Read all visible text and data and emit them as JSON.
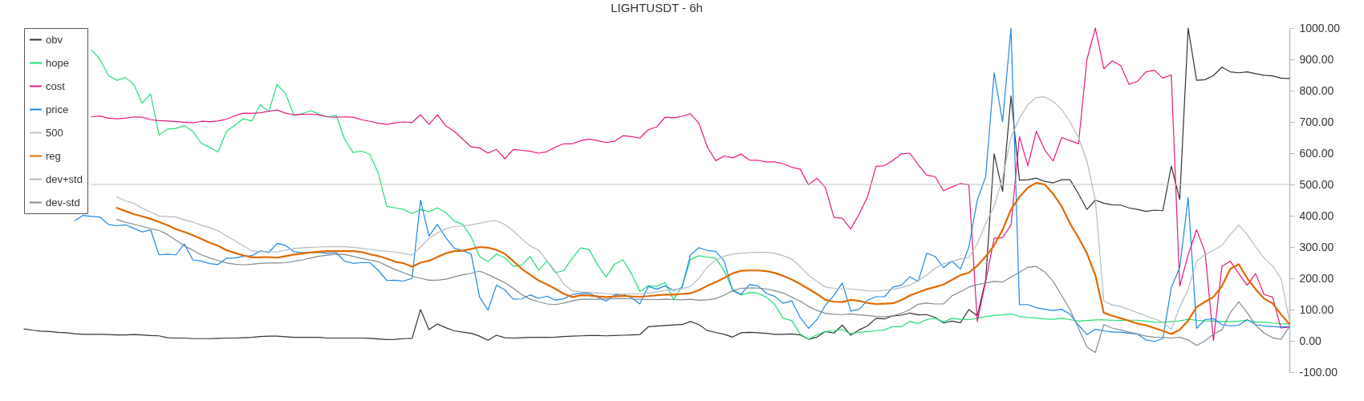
{
  "chart_data": {
    "type": "line",
    "title": "LIGHTUSDT - 6h",
    "categories": [
      null,
      null,
      null,
      null,
      null,
      null,
      null,
      null,
      null,
      null,
      null,
      null,
      null,
      null,
      null,
      null,
      null,
      null,
      null,
      null,
      null,
      null,
      null,
      null,
      null,
      null,
      null,
      null,
      null,
      null,
      null,
      null,
      null,
      null,
      null,
      null,
      null,
      null,
      null,
      null,
      null,
      null,
      null,
      null,
      null,
      null,
      null,
      null,
      null,
      null,
      null,
      null,
      null,
      null,
      null,
      null,
      null,
      null,
      null,
      null,
      null,
      null,
      null,
      null,
      null,
      null,
      null,
      null,
      null,
      null,
      null,
      null,
      null,
      null,
      null,
      null,
      null,
      null,
      null,
      null,
      null,
      null,
      null,
      null,
      null,
      null,
      null,
      null,
      null,
      null,
      null,
      null,
      null,
      null,
      null,
      null,
      null,
      null,
      null,
      null,
      null,
      null,
      null,
      null,
      null,
      null,
      null,
      null,
      null,
      null,
      null,
      null,
      null,
      null,
      null,
      null,
      null,
      null,
      null,
      null,
      null,
      null,
      null,
      null,
      null,
      null,
      null,
      null,
      null,
      null,
      null,
      null,
      null,
      null,
      null,
      null,
      null,
      null,
      null,
      null,
      null,
      null,
      null,
      null,
      null,
      null,
      null,
      null,
      null,
      null,
      null
    ],
    "series": [
      {
        "name": "obv",
        "color": "#333333",
        "values": [
          38,
          34,
          31,
          30,
          27,
          26,
          23,
          21,
          21,
          21,
          20,
          19,
          19,
          20,
          19,
          17,
          16,
          10,
          9,
          9,
          7,
          7,
          7,
          8,
          9,
          9,
          10,
          11,
          14,
          15,
          15,
          13,
          11,
          11,
          11,
          11,
          9,
          9,
          9,
          9,
          9,
          8,
          6,
          4,
          5,
          7,
          8,
          100,
          36,
          54,
          42,
          32,
          28,
          24,
          15,
          2,
          18,
          10,
          9,
          10,
          11,
          11,
          11,
          12,
          14,
          15,
          16,
          17,
          17,
          16,
          17,
          18,
          19,
          20,
          45,
          47,
          49,
          51,
          52,
          62,
          52,
          33,
          27,
          21,
          12,
          26,
          27,
          26,
          24,
          21,
          21,
          22,
          19,
          5,
          12,
          30,
          25,
          50,
          18,
          35,
          48,
          72,
          70,
          80,
          82,
          89,
          83,
          84,
          75,
          57,
          63,
          58,
          100,
          80,
          195,
          598,
          478,
          783,
          514,
          515,
          520,
          510,
          505,
          515,
          515,
          470,
          420,
          450,
          440,
          435,
          434,
          425,
          420,
          414,
          418,
          416,
          559,
          452,
          1000,
          833,
          835,
          848,
          875,
          860,
          857,
          860,
          854,
          849,
          847,
          840,
          839
        ]
      },
      {
        "name": "hope",
        "color": "#22dd77",
        "values": [
          null,
          null,
          null,
          null,
          null,
          null,
          null,
          null,
          930,
          900,
          848,
          833,
          842,
          820,
          760,
          790,
          658,
          677,
          679,
          688,
          670,
          632,
          619,
          604,
          670,
          690,
          710,
          703,
          755,
          733,
          820,
          790,
          720,
          727,
          736,
          724,
          716,
          721,
          645,
          602,
          607,
          596,
          535,
          430,
          425,
          420,
          407,
          420,
          413,
          425,
          410,
          383,
          372,
          332,
          270,
          253,
          277,
          266,
          238,
          242,
          270,
          226,
          255,
          218,
          225,
          265,
          297,
          292,
          242,
          204,
          245,
          259,
          215,
          158,
          176,
          174,
          187,
          131,
          175,
          260,
          272,
          268,
          264,
          224,
          165,
          147,
          155,
          152,
          140,
          115,
          72,
          65,
          22,
          5,
          20,
          30,
          32,
          36,
          23,
          27,
          30,
          32,
          35,
          46,
          45,
          62,
          55,
          68,
          72,
          60,
          72,
          69,
          68,
          72,
          78,
          81,
          83,
          86,
          78,
          75,
          73,
          70,
          69,
          72,
          68,
          63,
          65,
          67,
          67,
          66,
          65,
          66,
          66,
          63,
          60,
          59,
          62,
          64,
          69,
          66,
          64,
          63,
          62,
          62,
          63,
          66,
          60,
          60,
          57,
          55,
          54
        ]
      },
      {
        "name": "cost",
        "color": "#e6197f",
        "values": [
          null,
          null,
          null,
          null,
          null,
          null,
          null,
          null,
          716,
          719,
          712,
          710,
          712,
          716,
          715,
          707,
          704,
          703,
          701,
          699,
          697,
          702,
          701,
          703,
          709,
          720,
          728,
          727,
          729,
          734,
          738,
          728,
          723,
          724,
          725,
          722,
          716,
          715,
          716,
          715,
          707,
          702,
          696,
          692,
          697,
          700,
          698,
          723,
          692,
          723,
          687,
          670,
          645,
          620,
          617,
          600,
          612,
          582,
          612,
          609,
          606,
          600,
          605,
          620,
          630,
          630,
          640,
          645,
          640,
          634,
          638,
          656,
          653,
          648,
          675,
          684,
          715,
          713,
          718,
          726,
          696,
          620,
          576,
          591,
          585,
          597,
          578,
          577,
          572,
          572,
          566,
          555,
          549,
          499,
          520,
          490,
          395,
          392,
          358,
          405,
          461,
          558,
          560,
          577,
          598,
          600,
          563,
          530,
          525,
          480,
          492,
          503,
          499,
          62,
          190,
          328,
          330,
          370,
          653,
          560,
          670,
          610,
          575,
          650,
          640,
          630,
          900,
          1000,
          870,
          895,
          880,
          820,
          830,
          860,
          865,
          840,
          850,
          175,
          275,
          355,
          285,
          1,
          238,
          255,
          215,
          178,
          215,
          148,
          140,
          41,
          44
        ]
      },
      {
        "name": "price",
        "color": "#1e88e5",
        "values": [
          null,
          null,
          null,
          null,
          null,
          null,
          384,
          401,
          398,
          396,
          372,
          368,
          371,
          360,
          348,
          355,
          275,
          277,
          275,
          310,
          259,
          255,
          247,
          244,
          264,
          265,
          270,
          272,
          288,
          282,
          312,
          305,
          285,
          282,
          283,
          282,
          280,
          282,
          255,
          248,
          250,
          250,
          225,
          193,
          194,
          191,
          200,
          450,
          335,
          372,
          330,
          296,
          288,
          278,
          140,
          98,
          178,
          163,
          133,
          134,
          147,
          136,
          143,
          130,
          135,
          148,
          153,
          152,
          140,
          127,
          147,
          150,
          138,
          118,
          174,
          165,
          176,
          161,
          170,
          275,
          298,
          289,
          286,
          255,
          160,
          149,
          180,
          176,
          152,
          142,
          120,
          128,
          75,
          40,
          68,
          114,
          145,
          185,
          95,
          101,
          130,
          141,
          141,
          172,
          178,
          205,
          190,
          280,
          270,
          234,
          255,
          229,
          300,
          450,
          525,
          857,
          700,
          1000,
          116,
          116,
          106,
          101,
          97,
          101,
          85,
          50,
          20,
          37,
          32,
          28,
          28,
          24,
          22,
          3,
          -2,
          7,
          170,
          234,
          458,
          40,
          68,
          71,
          52,
          48,
          50,
          68,
          52,
          48,
          46,
          44,
          46
        ]
      },
      {
        "name": "500",
        "color": "#c4c4c4",
        "values": [
          null,
          null,
          null,
          null,
          null,
          null,
          null,
          null,
          500,
          500,
          500,
          500,
          500,
          500,
          500,
          500,
          500,
          500,
          500,
          500,
          500,
          500,
          500,
          500,
          500,
          500,
          500,
          500,
          500,
          500,
          500,
          500,
          500,
          500,
          500,
          500,
          500,
          500,
          500,
          500,
          500,
          500,
          500,
          500,
          500,
          500,
          500,
          500,
          500,
          500,
          500,
          500,
          500,
          500,
          500,
          500,
          500,
          500,
          500,
          500,
          500,
          500,
          500,
          500,
          500,
          500,
          500,
          500,
          500,
          500,
          500,
          500,
          500,
          500,
          500,
          500,
          500,
          500,
          500,
          500,
          500,
          500,
          500,
          500,
          500,
          500,
          500,
          500,
          500,
          500,
          500,
          500,
          500,
          500,
          500,
          500,
          500,
          500,
          500,
          500,
          500,
          500,
          500,
          500,
          500,
          500,
          500,
          500,
          500,
          500,
          500,
          500,
          500,
          500,
          500,
          500,
          500,
          500,
          500,
          500,
          500,
          500,
          500,
          500,
          500,
          500,
          500,
          500,
          500,
          500,
          500,
          500,
          500,
          500,
          500,
          500,
          500,
          500,
          500,
          500,
          500,
          500,
          500,
          500,
          500,
          500,
          500,
          500,
          500,
          500,
          500
        ]
      },
      {
        "name": "reg",
        "color": "#e06a00",
        "values": [
          null,
          null,
          null,
          null,
          null,
          null,
          null,
          null,
          null,
          null,
          null,
          425,
          415,
          405,
          398,
          390,
          380,
          370,
          357,
          348,
          338,
          326,
          314,
          304,
          290,
          281,
          273,
          267,
          267,
          268,
          266,
          271,
          276,
          279,
          283,
          285,
          287,
          287,
          287,
          287,
          284,
          277,
          271,
          263,
          253,
          248,
          237,
          250,
          256,
          268,
          280,
          287,
          288,
          294,
          300,
          298,
          291,
          278,
          255,
          230,
          211,
          193,
          180,
          166,
          150,
          140,
          146,
          145,
          142,
          140,
          142,
          144,
          142,
          141,
          143,
          146,
          148,
          148,
          150,
          152,
          162,
          176,
          188,
          201,
          216,
          224,
          225,
          225,
          223,
          217,
          208,
          196,
          182,
          166,
          150,
          131,
          125,
          124,
          131,
          128,
          121,
          118,
          119,
          120,
          130,
          145,
          155,
          165,
          172,
          180,
          195,
          210,
          218,
          240,
          270,
          305,
          355,
          420,
          460,
          490,
          505,
          500,
          470,
          430,
          375,
          330,
          280,
          210,
          90,
          80,
          72,
          64,
          55,
          50,
          41,
          32,
          22,
          35,
          65,
          108,
          125,
          140,
          175,
          230,
          245,
          200,
          165,
          135,
          120,
          85,
          54
        ]
      },
      {
        "name": "dev+std",
        "color": "#b4bcc4",
        "values": [
          null,
          null,
          null,
          null,
          null,
          null,
          null,
          null,
          null,
          null,
          null,
          460,
          448,
          440,
          424,
          412,
          399,
          398,
          396,
          387,
          380,
          370,
          362,
          352,
          336,
          320,
          304,
          288,
          285,
          285,
          284,
          290,
          295,
          298,
          299,
          300,
          301,
          301,
          301,
          299,
          296,
          293,
          288,
          286,
          284,
          280,
          274,
          300,
          328,
          345,
          358,
          366,
          367,
          371,
          376,
          382,
          384,
          372,
          352,
          326,
          303,
          290,
          256,
          222,
          180,
          160,
          157,
          155,
          153,
          151,
          150,
          150,
          150,
          150,
          153,
          156,
          161,
          164,
          167,
          174,
          200,
          236,
          258,
          271,
          277,
          280,
          282,
          283,
          283,
          280,
          272,
          262,
          238,
          210,
          190,
          172,
          168,
          166,
          166,
          163,
          160,
          159,
          162,
          165,
          170,
          178,
          193,
          210,
          232,
          246,
          255,
          262,
          266,
          310,
          375,
          430,
          520,
          650,
          712,
          755,
          778,
          780,
          765,
          740,
          700,
          650,
          575,
          450,
          127,
          115,
          110,
          100,
          90,
          80,
          70,
          60,
          37,
          108,
          165,
          255,
          275,
          290,
          305,
          340,
          370,
          340,
          300,
          265,
          240,
          200,
          67
        ]
      },
      {
        "name": "dev-std",
        "color": "#7f8c96",
        "values": [
          null,
          null,
          null,
          null,
          null,
          null,
          null,
          null,
          null,
          null,
          null,
          388,
          379,
          373,
          366,
          359,
          353,
          340,
          322,
          304,
          290,
          275,
          265,
          257,
          249,
          245,
          243,
          245,
          248,
          249,
          249,
          250,
          254,
          259,
          265,
          271,
          274,
          277,
          276,
          270,
          264,
          258,
          253,
          240,
          228,
          218,
          207,
          200,
          194,
          194,
          197,
          205,
          211,
          216,
          223,
          212,
          199,
          186,
          168,
          148,
          133,
          125,
          118,
          116,
          121,
          128,
          133,
          133,
          133,
          134,
          135,
          135,
          134,
          133,
          132,
          132,
          133,
          132,
          131,
          133,
          130,
          131,
          135,
          146,
          160,
          168,
          169,
          169,
          166,
          160,
          153,
          140,
          127,
          110,
          97,
          88,
          85,
          84,
          86,
          83,
          81,
          78,
          77,
          80,
          88,
          100,
          117,
          121,
          118,
          118,
          144,
          157,
          172,
          180,
          185,
          190,
          188,
          204,
          219,
          235,
          238,
          220,
          190,
          145,
          100,
          40,
          -20,
          -37,
          52,
          41,
          35,
          28,
          22,
          15,
          12,
          11,
          9,
          12,
          3,
          -15,
          0,
          22,
          35,
          90,
          125,
          90,
          50,
          25,
          10,
          5,
          45
        ]
      }
    ],
    "ylim": [
      -100,
      1000
    ],
    "yticks": [
      {
        "value": -100,
        "label": "-100.00"
      },
      {
        "value": 0,
        "label": "0.00"
      },
      {
        "value": 100,
        "label": "100.00"
      },
      {
        "value": 200,
        "label": "200.00"
      },
      {
        "value": 300,
        "label": "300.00"
      },
      {
        "value": 400,
        "label": "400.00"
      },
      {
        "value": 500,
        "label": "500.00"
      },
      {
        "value": 600,
        "label": "600.00"
      },
      {
        "value": 700,
        "label": "700.00"
      },
      {
        "value": 800,
        "label": "800.00"
      },
      {
        "value": 900,
        "label": "900.00"
      },
      {
        "value": 1000,
        "label": "1000.00"
      }
    ],
    "legend": "top left",
    "tick_labels": "y"
  }
}
